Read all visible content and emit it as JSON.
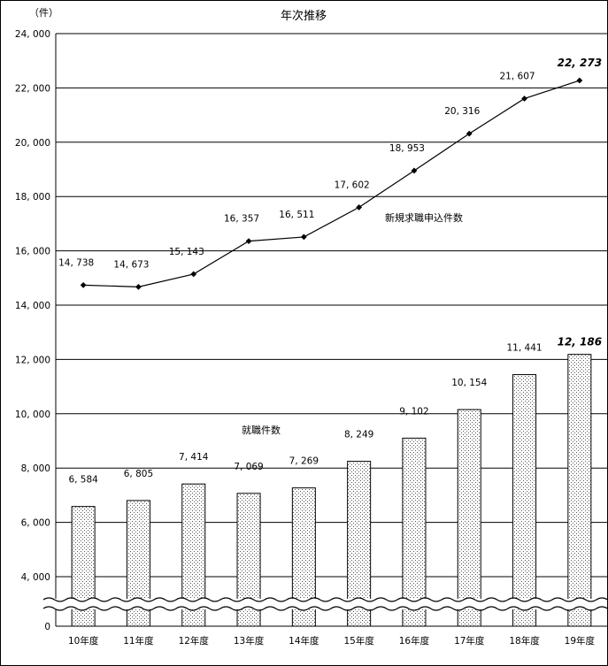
{
  "chart_data": {
    "type": "bar+line",
    "title": "年次推移",
    "unit_label": "（件）",
    "categories": [
      "10年度",
      "11年度",
      "12年度",
      "13年度",
      "14年度",
      "15年度",
      "16年度",
      "17年度",
      "18年度",
      "19年度"
    ],
    "series": [
      {
        "name": "新規求職申込件数",
        "type": "line",
        "values": [
          14738,
          14673,
          15143,
          16357,
          16511,
          17602,
          18953,
          20316,
          21607,
          22273
        ],
        "labels": [
          "14, 738",
          "14, 673",
          "15, 143",
          "16, 357",
          "16, 511",
          "17, 602",
          "18, 953",
          "20, 316",
          "21, 607",
          "22, 273"
        ],
        "emphasize_last": true
      },
      {
        "name": "就職件数",
        "type": "bar",
        "values": [
          6584,
          6805,
          7414,
          7069,
          7269,
          8249,
          9102,
          10154,
          11441,
          12186
        ],
        "labels": [
          "6, 584",
          "6, 805",
          "7, 414",
          "7, 069",
          "7, 269",
          "8, 249",
          "9, 102",
          "10, 154",
          "11, 441",
          "12, 186"
        ],
        "emphasize_last": true
      }
    ],
    "y_ticks": [
      "24, 000",
      "22, 000",
      "20, 000",
      "18, 000",
      "16, 000",
      "14, 000",
      "12, 000",
      "10, 000",
      "8, 000",
      "6, 000",
      "4, 000",
      "0"
    ],
    "y_tick_values": [
      24000,
      22000,
      20000,
      18000,
      16000,
      14000,
      12000,
      10000,
      8000,
      6000,
      4000,
      0
    ],
    "ylim": [
      0,
      24000
    ],
    "axis_break": true,
    "grid": true,
    "colors": {
      "line": "#000000",
      "bar_fill": "#e8e8e8",
      "bar_stroke": "#000000",
      "grid": "#000000"
    }
  }
}
